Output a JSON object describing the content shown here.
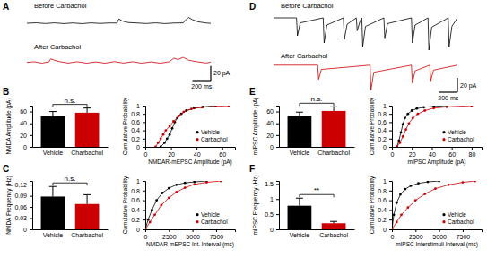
{
  "chart_data": [
    {
      "type": "line",
      "panel": "A",
      "title": "Before Carbachol",
      "color": "#000000",
      "tick_labels": false,
      "xlim": [
        0,
        2000
      ],
      "ylim": [
        -10,
        15
      ],
      "x": [
        0,
        100,
        200,
        300,
        400,
        500,
        600,
        700,
        800,
        900,
        980,
        1000,
        1040,
        1100,
        1200,
        1300,
        1400,
        1500,
        1600,
        1700,
        1730,
        1760,
        1800,
        1860,
        1950,
        2000
      ],
      "values": [
        0,
        0.6,
        -0.4,
        0.5,
        -0.5,
        0.4,
        -0.6,
        0.5,
        -0.3,
        0.4,
        0.2,
        6,
        3,
        1,
        0.3,
        -0.4,
        0.5,
        -0.5,
        0.3,
        0.5,
        5,
        8,
        5,
        2,
        0.3,
        -0.2
      ]
    },
    {
      "type": "line",
      "title": "After Carbachol",
      "color": "#cc0000",
      "tick_labels": false,
      "xlim": [
        0,
        2000
      ],
      "ylim": [
        -25,
        12
      ],
      "x": [
        0,
        80,
        160,
        240,
        260,
        300,
        360,
        450,
        550,
        650,
        750,
        850,
        950,
        1050,
        1150,
        1250,
        1350,
        1450,
        1550,
        1600,
        1640,
        1700,
        1760,
        1850,
        1950,
        2000
      ],
      "values": [
        0,
        1,
        -1,
        0.8,
        5,
        3,
        1,
        -0.8,
        1,
        -1,
        0.8,
        -1,
        1.2,
        -0.8,
        1,
        -1,
        0.8,
        -1,
        1,
        6,
        4,
        7,
        3,
        1,
        -0.8,
        0.5
      ],
      "scale_bar": {
        "x": 200,
        "y": 20,
        "x_label": "200 ms",
        "y_label": "20 pA"
      }
    },
    {
      "type": "bar",
      "panel": "B",
      "y_label": "NMDA Amplitude (pA)",
      "categories": [
        "Vehicle",
        "Charbachol"
      ],
      "values": [
        52,
        58
      ],
      "errors": [
        8,
        8
      ],
      "colors": [
        "#000000",
        "#cc0000"
      ],
      "ylim": [
        0,
        70
      ],
      "yticks": [
        0,
        20,
        40,
        60
      ],
      "annotation": "n.s."
    },
    {
      "type": "scatter",
      "y_label": "Cumulative Probability",
      "x_label": "NMDAR-mEPSC Amplitude (pA)",
      "xlim": [
        0,
        70
      ],
      "xticks": [
        0,
        20,
        40,
        60
      ],
      "ylim": [
        0,
        1
      ],
      "yticks": [
        0,
        0.2,
        0.4,
        0.6,
        0.8,
        1
      ],
      "legend": "lower right",
      "series": [
        {
          "name": "Vehicle",
          "color": "#000000",
          "marker": "circle",
          "line_style": "solid",
          "x": [
            12,
            15,
            17,
            19,
            21,
            23,
            25,
            28,
            32,
            38,
            45,
            55
          ],
          "values": [
            0,
            0.1,
            0.2,
            0.3,
            0.45,
            0.6,
            0.7,
            0.8,
            0.88,
            0.94,
            0.97,
            1
          ]
        },
        {
          "name": "Carbachol",
          "color": "#cc0000",
          "marker": "circle",
          "line_style": "solid",
          "x": [
            8,
            10,
            12,
            14,
            16,
            19,
            22,
            26,
            30,
            36,
            44,
            65
          ],
          "values": [
            0,
            0.1,
            0.2,
            0.3,
            0.4,
            0.5,
            0.62,
            0.75,
            0.85,
            0.92,
            0.96,
            1
          ]
        }
      ]
    },
    {
      "type": "bar",
      "panel": "C",
      "y_label": "NMDA Frequency (Hz)",
      "categories": [
        "Vehicle",
        "Charbachol"
      ],
      "values": [
        0.088,
        0.068
      ],
      "errors": [
        0.027,
        0.025
      ],
      "colors": [
        "#000000",
        "#cc0000"
      ],
      "ylim": [
        0,
        0.13
      ],
      "yticks": [
        0,
        0.03,
        0.06,
        0.09,
        0.12
      ],
      "annotation": "n.s."
    },
    {
      "type": "scatter",
      "y_label": "Cumulative Probability",
      "x_label": "NMDAR-mEPSC Int. Interval (ms)",
      "xlim": [
        0,
        9500
      ],
      "xticks": [
        0,
        2500,
        5000,
        7500
      ],
      "ylim": [
        0,
        1
      ],
      "yticks": [
        0,
        0.2,
        0.4,
        0.6,
        0.8,
        1
      ],
      "legend": "lower right",
      "series": [
        {
          "name": "Vehicle",
          "color": "#000000",
          "marker": "circle",
          "line_style": "solid",
          "x": [
            0,
            300,
            700,
            1200,
            1800,
            2500,
            3300,
            4200,
            5200,
            6500
          ],
          "values": [
            0,
            0.2,
            0.4,
            0.6,
            0.75,
            0.85,
            0.92,
            0.96,
            0.98,
            1
          ]
        },
        {
          "name": "Carbachol",
          "color": "#cc0000",
          "marker": "circle",
          "line_style": "solid",
          "x": [
            0,
            500,
            1000,
            1700,
            2500,
            3300,
            4200,
            5200,
            6500,
            8000
          ],
          "values": [
            0,
            0.15,
            0.3,
            0.5,
            0.65,
            0.77,
            0.86,
            0.93,
            0.97,
            1
          ]
        }
      ]
    },
    {
      "type": "line",
      "panel": "D",
      "title": "Before Carbachol",
      "color": "#000000",
      "tick_labels": false,
      "xlim": [
        0,
        2000
      ],
      "ylim": [
        -50,
        10
      ],
      "x": [
        0,
        250,
        260,
        290,
        540,
        550,
        580,
        760,
        770,
        800,
        900,
        910,
        940,
        960,
        970,
        1000,
        1200,
        1210,
        1240,
        1500,
        1510,
        1540,
        1680,
        1690,
        1720,
        1900,
        1910,
        1940,
        2000
      ],
      "values": [
        0,
        0,
        -25,
        -7,
        0,
        -35,
        -10,
        0,
        -30,
        -9,
        0,
        -18,
        -5,
        0,
        -40,
        -12,
        0,
        -28,
        -8,
        0,
        -35,
        -10,
        0,
        -45,
        -13,
        0,
        -40,
        -12,
        0
      ]
    },
    {
      "type": "line",
      "title": "After Carbachol",
      "color": "#cc0000",
      "tick_labels": false,
      "xlim": [
        0,
        2000
      ],
      "ylim": [
        -38,
        6
      ],
      "x": [
        0,
        480,
        490,
        520,
        1050,
        1060,
        1090,
        1500,
        1510,
        1540,
        1700,
        1710,
        1740,
        2000
      ],
      "values": [
        0,
        0,
        -20,
        -6,
        0,
        -35,
        -10,
        0,
        -25,
        -8,
        0,
        -22,
        -7,
        0
      ],
      "scale_bar": {
        "x": 200,
        "y": 20,
        "x_label": "200 ms",
        "y_label": "20 pA"
      }
    },
    {
      "type": "bar",
      "panel": "E",
      "y_label": "mIPSC Amplitude (pA)",
      "categories": [
        "Vehicle",
        "Charbachol"
      ],
      "values": [
        53,
        61
      ],
      "errors": [
        6,
        7
      ],
      "colors": [
        "#000000",
        "#cc0000"
      ],
      "ylim": [
        0,
        70
      ],
      "yticks": [
        0,
        20,
        40,
        60
      ],
      "annotation": "n.s."
    },
    {
      "type": "scatter",
      "y_label": "Cumulative Probability",
      "x_label": "mIPSC Amplitude (pA)",
      "xlim": [
        0,
        90
      ],
      "xticks": [
        0,
        20,
        40,
        60,
        80
      ],
      "ylim": [
        0,
        1
      ],
      "yticks": [
        0,
        0.2,
        0.4,
        0.6,
        0.8,
        1
      ],
      "legend": "lower right",
      "series": [
        {
          "name": "Vehicle",
          "color": "#000000",
          "marker": "circle",
          "line_style": "solid",
          "x": [
            5,
            7,
            9,
            11,
            13,
            16,
            20,
            25,
            32,
            42,
            55
          ],
          "values": [
            0,
            0.15,
            0.35,
            0.55,
            0.7,
            0.8,
            0.88,
            0.93,
            0.96,
            0.98,
            1
          ]
        },
        {
          "name": "Carbachol",
          "color": "#cc0000",
          "marker": "circle",
          "line_style": "solid",
          "x": [
            5,
            8,
            11,
            14,
            17,
            21,
            26,
            33,
            42,
            55,
            80
          ],
          "values": [
            0,
            0.1,
            0.25,
            0.42,
            0.57,
            0.7,
            0.8,
            0.88,
            0.94,
            0.97,
            1
          ]
        }
      ]
    },
    {
      "type": "bar",
      "panel": "F",
      "y_label": "mIPSC Frequency (Hz)",
      "categories": [
        "Vehicle",
        "Carbachol"
      ],
      "values": [
        0.78,
        0.2
      ],
      "errors": [
        0.25,
        0.06
      ],
      "colors": [
        "#000000",
        "#cc0000"
      ],
      "ylim": [
        0,
        1.6
      ],
      "yticks": [
        0,
        0.5,
        1,
        1.5
      ],
      "annotation": "**"
    },
    {
      "type": "scatter",
      "y_label": "Cumulative Probability",
      "x_label": "mIPSC Interstimuli Interval (ms)",
      "xlim": [
        0,
        9500
      ],
      "xticks": [
        0,
        2500,
        5000,
        7500
      ],
      "ylim": [
        0,
        1
      ],
      "yticks": [
        0,
        0.2,
        0.4,
        0.6,
        0.8,
        1
      ],
      "legend": "lower right",
      "series": [
        {
          "name": "Vehicle",
          "color": "#000000",
          "marker": "circle",
          "line_style": "solid",
          "x": [
            0,
            200,
            500,
            900,
            1400,
            2000,
            2800,
            3800,
            5000
          ],
          "values": [
            0,
            0.3,
            0.55,
            0.72,
            0.83,
            0.9,
            0.95,
            0.98,
            1
          ]
        },
        {
          "name": "Carbachol",
          "color": "#cc0000",
          "marker": "circle",
          "line_style": "solid",
          "x": [
            0,
            500,
            1000,
            1700,
            2500,
            3500,
            4600,
            6000,
            7500,
            8800
          ],
          "values": [
            0,
            0.15,
            0.3,
            0.45,
            0.6,
            0.73,
            0.84,
            0.92,
            0.97,
            1
          ]
        }
      ]
    }
  ]
}
